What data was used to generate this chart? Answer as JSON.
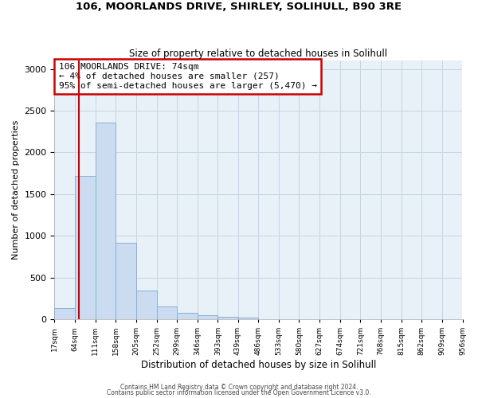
{
  "title": "106, MOORLANDS DRIVE, SHIRLEY, SOLIHULL, B90 3RE",
  "subtitle": "Size of property relative to detached houses in Solihull",
  "xlabel": "Distribution of detached houses by size in Solihull",
  "ylabel": "Number of detached properties",
  "bar_counts": [
    130,
    1720,
    2360,
    920,
    340,
    155,
    80,
    45,
    30,
    20,
    0,
    0,
    0,
    0,
    0,
    0,
    0,
    0,
    0,
    0
  ],
  "bin_labels": [
    "17sqm",
    "64sqm",
    "111sqm",
    "158sqm",
    "205sqm",
    "252sqm",
    "299sqm",
    "346sqm",
    "393sqm",
    "439sqm",
    "486sqm",
    "533sqm",
    "580sqm",
    "627sqm",
    "674sqm",
    "721sqm",
    "768sqm",
    "815sqm",
    "862sqm",
    "909sqm",
    "956sqm"
  ],
  "bar_color": "#ccdcf0",
  "bar_edge_color": "#88b0d8",
  "annotation_text": "106 MOORLANDS DRIVE: 74sqm\n← 4% of detached houses are smaller (257)\n95% of semi-detached houses are larger (5,470) →",
  "annotation_box_color": "#ffffff",
  "annotation_box_edge": "#cc0000",
  "vline_x": 74,
  "vline_color": "#cc0000",
  "ylim": [
    0,
    3100
  ],
  "yticks": [
    0,
    500,
    1000,
    1500,
    2000,
    2500,
    3000
  ],
  "footer_line1": "Contains HM Land Registry data © Crown copyright and database right 2024.",
  "footer_line2": "Contains public sector information licensed under the Open Government Licence v3.0.",
  "bg_color": "#ffffff",
  "plot_bg_color": "#e8f0f8",
  "grid_color": "#c8d4e4",
  "bin_edges": [
    17,
    64,
    111,
    158,
    205,
    252,
    299,
    346,
    393,
    439,
    486,
    533,
    580,
    627,
    674,
    721,
    768,
    815,
    862,
    909,
    956
  ]
}
